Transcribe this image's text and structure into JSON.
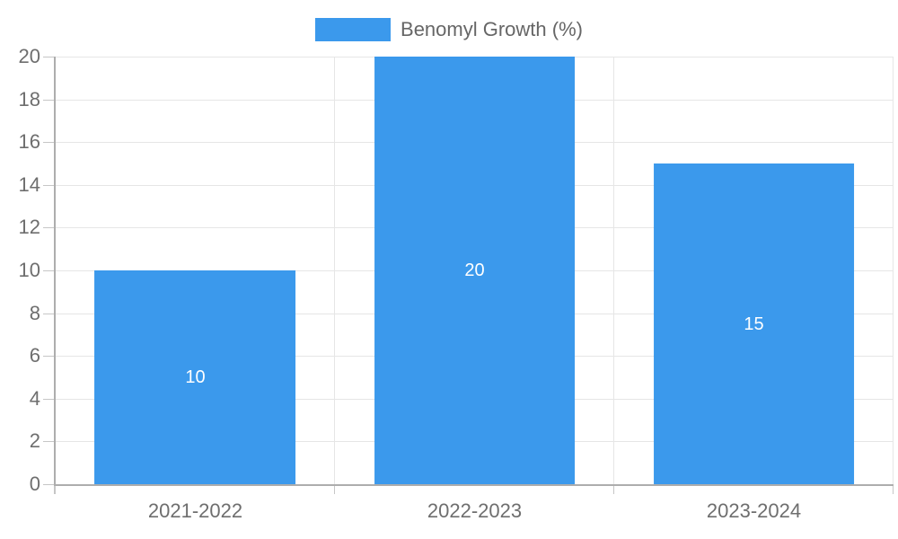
{
  "chart_data": {
    "type": "bar",
    "title": "",
    "categories": [
      "2021-2022",
      "2022-2023",
      "2023-2024"
    ],
    "series": [
      {
        "name": "Benomyl Growth (%)",
        "values": [
          10,
          20,
          15
        ]
      }
    ],
    "xlabel": "",
    "ylabel": "",
    "ylim": [
      0,
      20
    ],
    "yticks": [
      0,
      2,
      4,
      6,
      8,
      10,
      12,
      14,
      16,
      18,
      20
    ],
    "grid": true,
    "legend_position": "top-center",
    "bar_width_fraction": 0.72,
    "colors": {
      "bar": "#3B99EC",
      "grid": "#E6E6E6",
      "axis": "#ADADAD",
      "tick": "#C6C6C6",
      "axis_text": "#6E6E6E",
      "legend_text": "#666666",
      "bar_label_text": "#FFFFFF"
    }
  }
}
